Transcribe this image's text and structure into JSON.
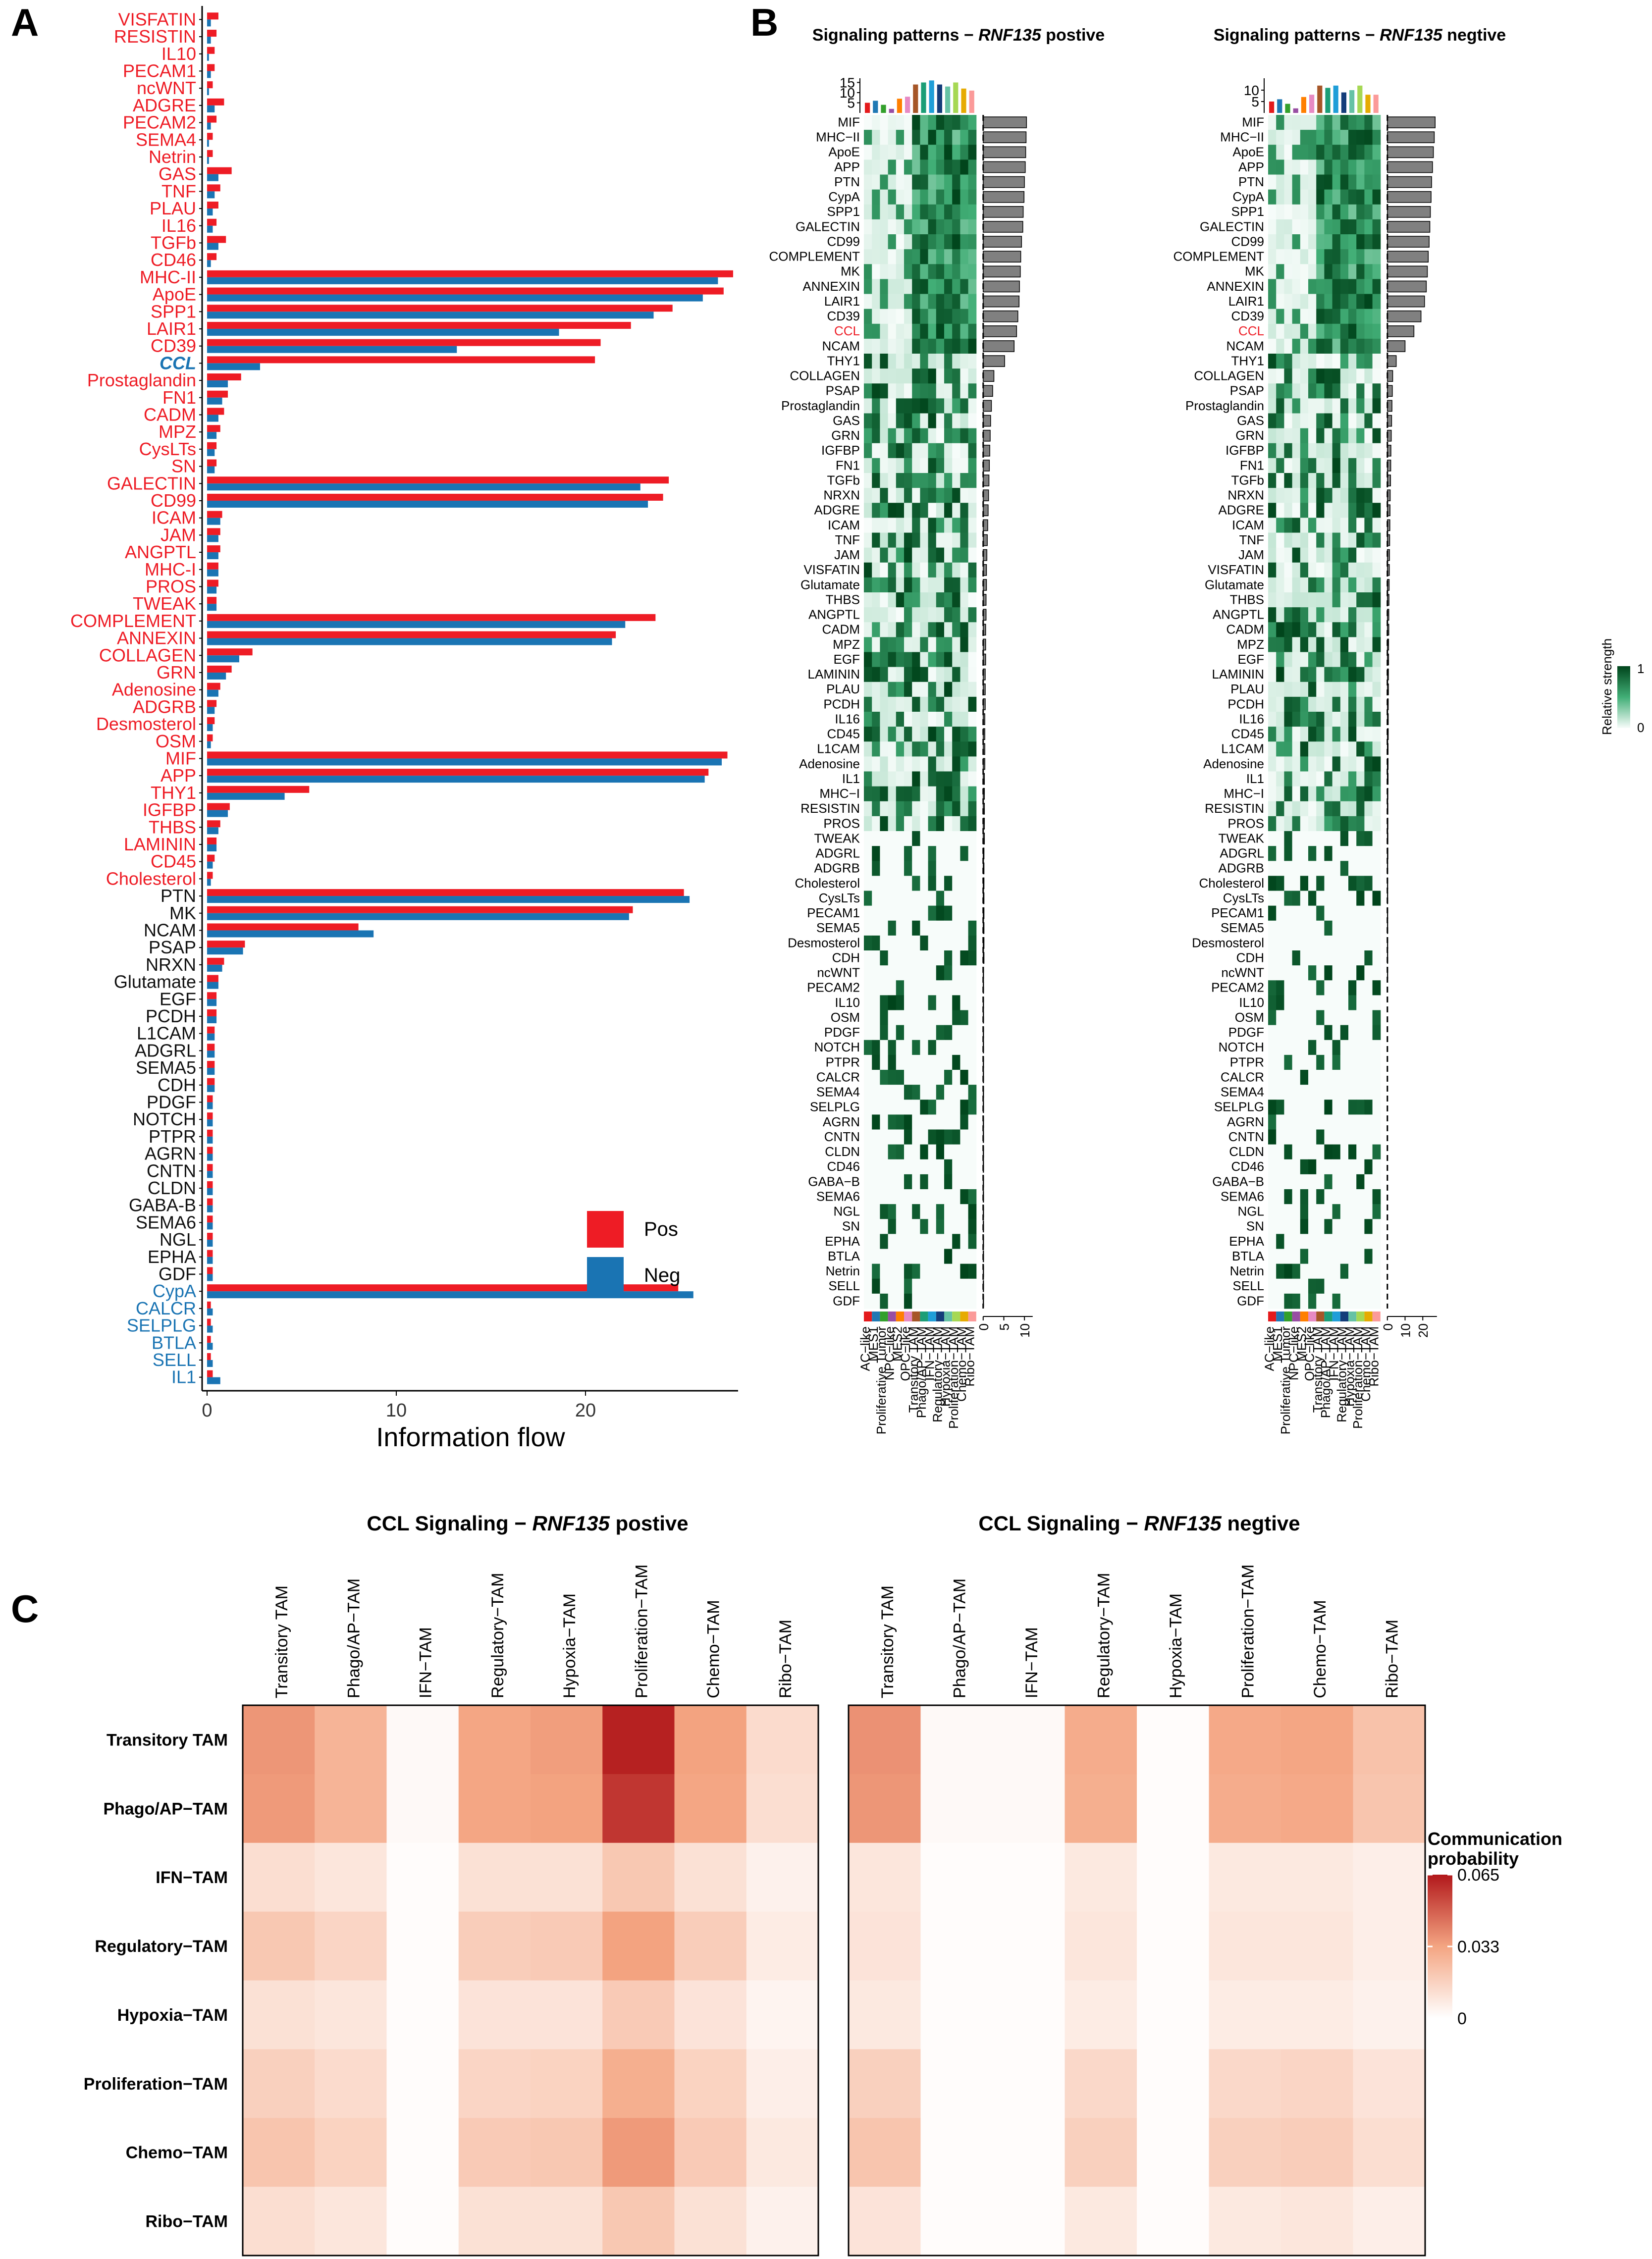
{
  "panels": {
    "A": "A",
    "B": "B",
    "C": "C"
  },
  "colors": {
    "pos": "#EE1C25",
    "neg": "#1A74B3",
    "heat_low": "#F7FCFA",
    "heat_high": "#00441B",
    "prob_low": "#FFFFFF",
    "prob_high": "#B2181B",
    "cell_colors": [
      "#E41A1C",
      "#1F78B4",
      "#33A02C",
      "#984EA3",
      "#FF7F00",
      "#E78AC3",
      "#A65628",
      "#1B9E77",
      "#1F9ED8",
      "#143D7A",
      "#66C2A5",
      "#A6D854",
      "#E6AB02",
      "#FB9A99"
    ]
  },
  "chart_data": [
    {
      "type": "bar",
      "panel": "A",
      "orientation": "horizontal",
      "xlabel": "Information flow",
      "xticks": [
        0,
        10,
        20
      ],
      "xlim": [
        -0.5,
        28
      ],
      "legend": [
        "Pos",
        "Neg"
      ],
      "legend_position": "bottom-right",
      "categories": [
        "VISFATIN",
        "RESISTIN",
        "IL10",
        "PECAM1",
        "ncWNT",
        "ADGRE",
        "PECAM2",
        "SEMA4",
        "Netrin",
        "GAS",
        "TNF",
        "PLAU",
        "IL16",
        "TGFb",
        "CD46",
        "MHC-II",
        "ApoE",
        "SPP1",
        "LAIR1",
        "CD39",
        "CCL",
        "Prostaglandin",
        "FN1",
        "CADM",
        "MPZ",
        "CysLTs",
        "SN",
        "GALECTIN",
        "CD99",
        "ICAM",
        "JAM",
        "ANGPTL",
        "MHC-I",
        "PROS",
        "TWEAK",
        "COMPLEMENT",
        "ANNEXIN",
        "COLLAGEN",
        "GRN",
        "Adenosine",
        "ADGRB",
        "Desmosterol",
        "OSM",
        "MIF",
        "APP",
        "THY1",
        "IGFBP",
        "THBS",
        "LAMININ",
        "CD45",
        "Cholesterol",
        "PTN",
        "MK",
        "NCAM",
        "PSAP",
        "NRXN",
        "Glutamate",
        "EGF",
        "PCDH",
        "L1CAM",
        "ADGRL",
        "SEMA5",
        "CDH",
        "PDGF",
        "NOTCH",
        "PTPR",
        "AGRN",
        "CNTN",
        "CLDN",
        "GABA-B",
        "SEMA6",
        "NGL",
        "EPHA",
        "GDF",
        "CypA",
        "CALCR",
        "SELPLG",
        "BTLA",
        "SELL",
        "IL1"
      ],
      "label_colors": [
        "red",
        "red",
        "red",
        "red",
        "red",
        "red",
        "red",
        "red",
        "red",
        "red",
        "red",
        "red",
        "red",
        "red",
        "red",
        "red",
        "red",
        "red",
        "red",
        "red",
        "blue",
        "red",
        "red",
        "red",
        "red",
        "red",
        "red",
        "red",
        "red",
        "red",
        "red",
        "red",
        "red",
        "red",
        "red",
        "red",
        "red",
        "red",
        "red",
        "red",
        "red",
        "red",
        "red",
        "red",
        "red",
        "red",
        "red",
        "red",
        "red",
        "red",
        "red",
        "black",
        "black",
        "black",
        "black",
        "black",
        "black",
        "black",
        "black",
        "black",
        "black",
        "black",
        "black",
        "black",
        "black",
        "black",
        "black",
        "black",
        "black",
        "black",
        "black",
        "black",
        "black",
        "black",
        "blue",
        "blue",
        "blue",
        "blue",
        "blue",
        "blue"
      ],
      "series": [
        {
          "name": "Pos",
          "values": [
            0.6,
            0.5,
            0.4,
            0.4,
            0.3,
            0.9,
            0.5,
            0.3,
            0.3,
            1.3,
            0.7,
            0.6,
            0.5,
            1.0,
            0.5,
            27.8,
            27.3,
            24.6,
            22.4,
            20.8,
            20.5,
            1.8,
            1.1,
            0.9,
            0.7,
            0.5,
            0.5,
            24.4,
            24.1,
            0.8,
            0.7,
            0.7,
            0.6,
            0.6,
            0.5,
            23.7,
            21.6,
            2.4,
            1.3,
            0.7,
            0.5,
            0.4,
            0.3,
            27.5,
            26.5,
            5.4,
            1.2,
            0.7,
            0.5,
            0.4,
            0.3,
            25.2,
            22.5,
            8.0,
            2.0,
            0.9,
            0.6,
            0.5,
            0.5,
            0.4,
            0.4,
            0.4,
            0.4,
            0.3,
            0.3,
            0.3,
            0.3,
            0.3,
            0.3,
            0.3,
            0.3,
            0.3,
            0.3,
            0.3,
            24.9,
            0.2,
            0.2,
            0.2,
            0.2,
            0.3
          ]
        },
        {
          "name": "Neg",
          "values": [
            0.2,
            0.2,
            0.1,
            0.2,
            0.1,
            0.4,
            0.2,
            0.1,
            0.1,
            0.6,
            0.4,
            0.3,
            0.3,
            0.6,
            0.2,
            27.0,
            26.2,
            23.6,
            18.6,
            13.2,
            2.8,
            1.1,
            0.8,
            0.6,
            0.5,
            0.4,
            0.4,
            22.9,
            23.3,
            0.7,
            0.6,
            0.6,
            0.6,
            0.5,
            0.5,
            22.1,
            21.4,
            1.7,
            1.0,
            0.6,
            0.4,
            0.3,
            0.2,
            27.2,
            26.3,
            4.1,
            1.1,
            0.6,
            0.5,
            0.3,
            0.2,
            25.5,
            22.3,
            8.8,
            1.9,
            0.8,
            0.6,
            0.5,
            0.5,
            0.4,
            0.4,
            0.4,
            0.4,
            0.3,
            0.3,
            0.3,
            0.3,
            0.3,
            0.3,
            0.3,
            0.3,
            0.3,
            0.3,
            0.3,
            25.7,
            0.3,
            0.3,
            0.3,
            0.3,
            0.7
          ]
        }
      ]
    },
    {
      "type": "heatmap",
      "panel": "B",
      "titles": [
        {
          "pre": "Signaling patterns − ",
          "gene": "RNF135",
          "post": " postive"
        },
        {
          "pre": "Signaling patterns − ",
          "gene": "RNF135",
          "post": " negtive"
        }
      ],
      "legend_title": "Relative strength",
      "legend_ticks": [
        "1",
        "0"
      ],
      "columns": [
        "AC−like",
        "MES1",
        "Proliferative Tumor",
        "NPC−like",
        "MES2",
        "OPC−like",
        "Transitory TAM",
        "Phago/AP−TAM",
        "IFN−TAM",
        "Regulatory−TAM",
        "Hypoxia−TAM",
        "Proliferation−TAM",
        "Chemo−TAM",
        "Ribo−TAM"
      ],
      "rows": [
        "MIF",
        "MHC−II",
        "ApoE",
        "APP",
        "PTN",
        "CypA",
        "SPP1",
        "GALECTIN",
        "CD99",
        "COMPLEMENT",
        "MK",
        "ANNEXIN",
        "LAIR1",
        "CD39",
        "CCL",
        "NCAM",
        "THY1",
        "COLLAGEN",
        "PSAP",
        "Prostaglandin",
        "GAS",
        "GRN",
        "IGFBP",
        "FN1",
        "TGFb",
        "NRXN",
        "ADGRE",
        "ICAM",
        "TNF",
        "JAM",
        "VISFATIN",
        "Glutamate",
        "THBS",
        "ANGPTL",
        "CADM",
        "MPZ",
        "EGF",
        "LAMININ",
        "PLAU",
        "PCDH",
        "IL16",
        "CD45",
        "L1CAM",
        "Adenosine",
        "IL1",
        "MHC−I",
        "RESISTIN",
        "PROS",
        "TWEAK",
        "ADGRL",
        "ADGRB",
        "Cholesterol",
        "CysLTs",
        "PECAM1",
        "SEMA5",
        "Desmosterol",
        "CDH",
        "ncWNT",
        "PECAM2",
        "IL10",
        "OSM",
        "PDGF",
        "NOTCH",
        "PTPR",
        "CALCR",
        "SEMA4",
        "SELPLG",
        "AGRN",
        "CNTN",
        "CLDN",
        "CD46",
        "GABA−B",
        "SEMA6",
        "NGL",
        "SN",
        "EPHA",
        "BTLA",
        "Netrin",
        "SELL",
        "GDF"
      ],
      "highlight_row": "CCL",
      "top_bars": {
        "positive": {
          "values": [
            5,
            6,
            4,
            2,
            7,
            8,
            14,
            15,
            16,
            14,
            13,
            15,
            12,
            11
          ],
          "ticks": [
            5,
            10,
            15
          ]
        },
        "negative": {
          "values": [
            5,
            6,
            4,
            2,
            7,
            8,
            12,
            11,
            12,
            9,
            10,
            12,
            8,
            8
          ],
          "ticks": [
            5,
            10
          ]
        }
      },
      "side_bars": {
        "positive": {
          "ticks": [
            0,
            5,
            10
          ],
          "values": [
            10.5,
            10.4,
            10.3,
            10.2,
            10,
            9.9,
            9.7,
            9.6,
            9.3,
            9.1,
            9,
            8.8,
            8.7,
            8.4,
            8.1,
            7.5,
            5.2,
            2.6,
            2.3,
            2,
            1.8,
            1.7,
            1.6,
            1.5,
            1.4,
            1.3,
            1.2,
            1.1,
            1,
            0.9,
            0.8,
            0.8,
            0.7,
            0.7,
            0.6,
            0.6,
            0.6,
            0.5,
            0.5,
            0.5,
            0.4,
            0.4,
            0.4,
            0.4,
            0.3,
            0.3,
            0.3,
            0.3,
            0.3,
            0.2,
            0.2,
            0.2,
            0.2,
            0.2,
            0.2,
            0.2,
            0.2,
            0.1,
            0.1,
            0.1,
            0.1,
            0.1,
            0.1,
            0.1,
            0.1,
            0.1,
            0.1,
            0.1,
            0.1,
            0.1,
            0.1,
            0.1,
            0.1,
            0.1,
            0.1,
            0.1,
            0.1,
            0.1,
            0.1,
            0.1
          ]
        },
        "negative": {
          "ticks": [
            0,
            10,
            20
          ],
          "values": [
            27,
            26.5,
            26,
            25.5,
            25,
            24.7,
            24.3,
            24,
            23.6,
            23.1,
            22.6,
            22,
            21,
            19,
            15,
            10,
            5,
            3,
            2.8,
            2.6,
            2.4,
            2.2,
            2,
            1.9,
            1.8,
            1.6,
            1.5,
            1.4,
            1.3,
            1.2,
            1.1,
            1,
            0.9,
            0.8,
            0.8,
            0.7,
            0.7,
            0.6,
            0.6,
            0.5,
            0.5,
            0.5,
            0.4,
            0.4,
            0.4,
            0.3,
            0.3,
            0.3,
            0.3,
            0.3,
            0.2,
            0.2,
            0.2,
            0.2,
            0.2,
            0.2,
            0.2,
            0.2,
            0.1,
            0.1,
            0.1,
            0.1,
            0.1,
            0.1,
            0.1,
            0.1,
            0.1,
            0.1,
            0.1,
            0.1,
            0.1,
            0.1,
            0.1,
            0.1,
            0.1,
            0.1,
            0.1,
            0.1,
            0.1,
            0.1
          ]
        }
      }
    },
    {
      "type": "heatmap",
      "panel": "C",
      "titles": [
        {
          "pre": "CCL Signaling − ",
          "gene": "RNF135",
          "post": " postive"
        },
        {
          "pre": "CCL Signaling − ",
          "gene": "RNF135",
          "post": " negtive"
        }
      ],
      "labels": [
        "Transitory TAM",
        "Phago/AP−TAM",
        "IFN−TAM",
        "Regulatory−TAM",
        "Hypoxia−TAM",
        "Proliferation−TAM",
        "Chemo−TAM",
        "Ribo−TAM"
      ],
      "legend_title": [
        "Communication",
        "probability"
      ],
      "legend_ticks": [
        "0.065",
        "0.033",
        "0"
      ],
      "scale_max": 0.065,
      "positive": [
        [
          0.036,
          0.027,
          0.002,
          0.032,
          0.034,
          0.063,
          0.033,
          0.013
        ],
        [
          0.035,
          0.027,
          0.002,
          0.032,
          0.033,
          0.058,
          0.032,
          0.012
        ],
        [
          0.012,
          0.009,
          0.001,
          0.011,
          0.011,
          0.02,
          0.011,
          0.005
        ],
        [
          0.02,
          0.015,
          0.001,
          0.018,
          0.019,
          0.033,
          0.018,
          0.007
        ],
        [
          0.011,
          0.009,
          0.001,
          0.01,
          0.01,
          0.019,
          0.01,
          0.004
        ],
        [
          0.017,
          0.013,
          0.001,
          0.015,
          0.016,
          0.029,
          0.016,
          0.006
        ],
        [
          0.021,
          0.016,
          0.001,
          0.019,
          0.02,
          0.035,
          0.019,
          0.008
        ],
        [
          0.012,
          0.009,
          0.001,
          0.011,
          0.011,
          0.02,
          0.011,
          0.005
        ]
      ],
      "negative": [
        [
          0.037,
          0.002,
          0.002,
          0.03,
          0.001,
          0.031,
          0.032,
          0.022
        ],
        [
          0.036,
          0.002,
          0.002,
          0.029,
          0.001,
          0.03,
          0.031,
          0.021
        ],
        [
          0.009,
          0.001,
          0.001,
          0.008,
          0.001,
          0.008,
          0.008,
          0.006
        ],
        [
          0.01,
          0.001,
          0.001,
          0.009,
          0.001,
          0.009,
          0.009,
          0.006
        ],
        [
          0.008,
          0.001,
          0.001,
          0.007,
          0.001,
          0.007,
          0.007,
          0.005
        ],
        [
          0.017,
          0.001,
          0.001,
          0.014,
          0.001,
          0.014,
          0.015,
          0.01
        ],
        [
          0.021,
          0.001,
          0.001,
          0.017,
          0.001,
          0.017,
          0.018,
          0.012
        ],
        [
          0.01,
          0.001,
          0.001,
          0.008,
          0.001,
          0.008,
          0.009,
          0.006
        ]
      ]
    }
  ]
}
